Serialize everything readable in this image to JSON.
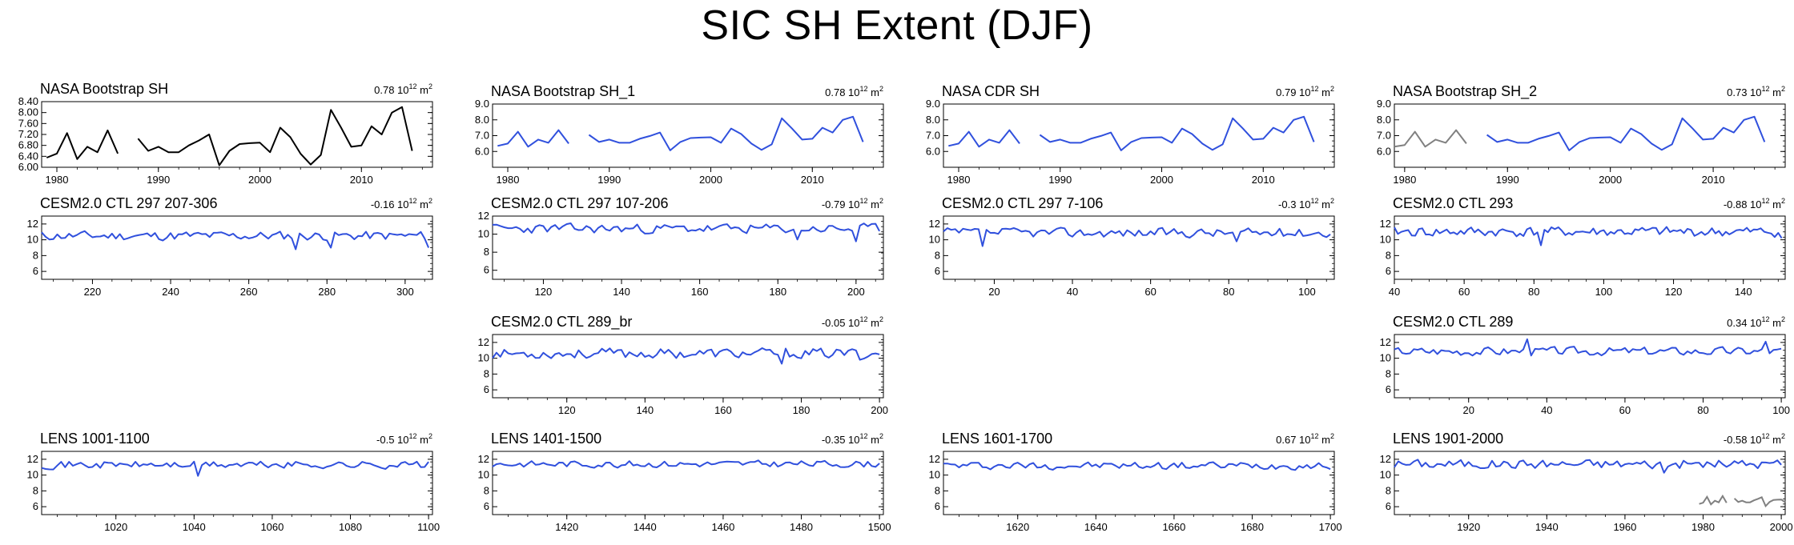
{
  "title": "SIC SH Extent (DJF)",
  "unit": {
    "base": "10",
    "exp": "12",
    "sym": "m",
    "sym_exp": "2"
  },
  "colors": {
    "obs": "#000000",
    "model": "#3050dd",
    "overlay": "#808080"
  },
  "chart_data": [
    {
      "type": "line",
      "title": "NASA Bootstrap SH",
      "std": "0.78",
      "color": "obs",
      "xlim": [
        1978.5,
        2017
      ],
      "ylim": [
        6.0,
        8.4
      ],
      "yticks": [
        "6.00",
        "6.40",
        "6.80",
        "7.20",
        "7.60",
        "8.00",
        "8.40"
      ],
      "xticks": [
        "1980",
        "1990",
        "2000",
        "2010"
      ],
      "series": [
        {
          "x0": 1979,
          "values": [
            6.35,
            6.5,
            7.25,
            6.3,
            6.75,
            6.55,
            7.35,
            6.5
          ]
        },
        {
          "x0": 1988,
          "values": [
            7.05,
            6.6,
            6.75,
            6.55,
            6.55,
            6.8,
            6.98,
            7.2,
            6.07,
            6.6,
            6.85,
            6.88,
            6.9,
            6.55,
            7.45,
            7.1,
            6.5,
            6.1,
            6.45,
            8.1,
            7.45,
            6.75,
            6.8,
            7.5,
            7.2,
            8.0,
            8.2,
            6.6
          ]
        }
      ]
    },
    {
      "type": "line",
      "title": "NASA Bootstrap SH_1",
      "std": "0.78",
      "color": "model",
      "xlim": [
        1978.5,
        2017
      ],
      "ylim": [
        5.0,
        9.0
      ],
      "yticks": [
        "6.0",
        "7.0",
        "8.0",
        "9.0"
      ],
      "xticks": [
        "1980",
        "1990",
        "2000",
        "2010"
      ],
      "series": [
        {
          "x0": 1979,
          "values": [
            6.35,
            6.5,
            7.25,
            6.3,
            6.75,
            6.55,
            7.35,
            6.5
          ]
        },
        {
          "x0": 1988,
          "values": [
            7.05,
            6.6,
            6.75,
            6.55,
            6.55,
            6.8,
            6.98,
            7.2,
            6.07,
            6.6,
            6.85,
            6.88,
            6.9,
            6.55,
            7.45,
            7.1,
            6.5,
            6.1,
            6.45,
            8.1,
            7.45,
            6.75,
            6.8,
            7.5,
            7.2,
            8.0,
            8.2,
            6.6
          ]
        }
      ]
    },
    {
      "type": "line",
      "title": "NASA CDR SH",
      "std": "0.79",
      "color": "model",
      "xlim": [
        1978.5,
        2017
      ],
      "ylim": [
        5.0,
        9.0
      ],
      "yticks": [
        "6.0",
        "7.0",
        "8.0",
        "9.0"
      ],
      "xticks": [
        "1980",
        "1990",
        "2000",
        "2010"
      ],
      "series": [
        {
          "x0": 1979,
          "values": [
            6.35,
            6.5,
            7.25,
            6.3,
            6.75,
            6.55,
            7.35,
            6.5
          ]
        },
        {
          "x0": 1988,
          "values": [
            7.05,
            6.6,
            6.75,
            6.55,
            6.55,
            6.8,
            6.98,
            7.2,
            6.07,
            6.6,
            6.85,
            6.88,
            6.9,
            6.55,
            7.45,
            7.1,
            6.5,
            6.1,
            6.45,
            8.1,
            7.45,
            6.75,
            6.8,
            7.5,
            7.2,
            8.0,
            8.2,
            6.6
          ]
        }
      ]
    },
    {
      "type": "line",
      "title": "NASA Bootstrap SH_2",
      "std": "0.73",
      "color": "model",
      "xlim": [
        1979,
        2017
      ],
      "ylim": [
        5.0,
        9.0
      ],
      "yticks": [
        "6.0",
        "7.0",
        "8.0",
        "9.0"
      ],
      "xticks": [
        "1980",
        "1990",
        "2000",
        "2010"
      ],
      "series": [
        {
          "x0": 1979,
          "values": [
            6.3,
            6.4,
            7.25,
            6.3,
            6.75,
            6.55,
            7.35,
            6.5
          ],
          "first_segment_color": "overlay"
        },
        {
          "x0": 1988,
          "values": [
            7.05,
            6.6,
            6.75,
            6.55,
            6.55,
            6.8,
            6.98,
            7.2,
            6.07,
            6.6,
            6.85,
            6.88,
            6.9,
            6.55,
            7.45,
            7.1,
            6.5,
            6.1,
            6.45,
            8.1,
            7.45,
            6.75,
            6.8,
            7.5,
            7.2,
            8.0,
            8.2,
            6.6
          ]
        }
      ]
    },
    {
      "type": "line",
      "title": "CESM2.0 CTL 297 207-306",
      "std": "-0.16",
      "color": "model",
      "xlim": [
        207,
        307
      ],
      "ylim": [
        5,
        13
      ],
      "yticks": [
        "6",
        "8",
        "10",
        "12"
      ],
      "xticks": [
        "220",
        "240",
        "260",
        "280",
        "300"
      ],
      "gen": {
        "x0": 207,
        "n": 100,
        "mean": 10.5,
        "amp": 0.55,
        "seed": 11,
        "dips": [
          [
            272,
            8.8
          ],
          [
            281,
            9.0
          ],
          [
            306,
            9.0
          ]
        ]
      }
    },
    {
      "type": "line",
      "title": "CESM2.0 CTL 297 107-206",
      "std": "-0.79",
      "color": "model",
      "xlim": [
        107,
        207
      ],
      "ylim": [
        5,
        12
      ],
      "yticks": [
        "6",
        "8",
        "10",
        "12"
      ],
      "xticks": [
        "120",
        "140",
        "160",
        "180",
        "200"
      ],
      "gen": {
        "x0": 107,
        "n": 100,
        "mean": 10.6,
        "amp": 0.5,
        "seed": 23,
        "dips": [
          [
            185,
            9.4
          ],
          [
            200,
            9.2
          ]
        ]
      }
    },
    {
      "type": "line",
      "title": "CESM2.0 CTL 297 7-106",
      "std": "-0.3",
      "color": "model",
      "xlim": [
        7,
        107
      ],
      "ylim": [
        5,
        13
      ],
      "yticks": [
        "6",
        "8",
        "10",
        "12"
      ],
      "xticks": [
        "20",
        "40",
        "60",
        "80",
        "100"
      ],
      "gen": {
        "x0": 7,
        "n": 100,
        "mean": 10.9,
        "amp": 0.55,
        "seed": 37,
        "dips": [
          [
            17,
            9.2
          ],
          [
            82,
            9.8
          ]
        ]
      }
    },
    {
      "type": "line",
      "title": "CESM2.0 CTL 293",
      "std": "-0.88",
      "color": "model",
      "xlim": [
        40,
        152
      ],
      "ylim": [
        5,
        13
      ],
      "yticks": [
        "6",
        "8",
        "10",
        "12"
      ],
      "xticks": [
        "40",
        "60",
        "80",
        "100",
        "120",
        "140"
      ],
      "gen": {
        "x0": 40,
        "n": 112,
        "mean": 11.0,
        "amp": 0.6,
        "seed": 41,
        "dips": [
          [
            82,
            9.3
          ],
          [
            151,
            10.2
          ]
        ]
      }
    },
    {
      "type": "line",
      "title": "CESM2.0 CTL 289_br",
      "std": "-0.05",
      "color": "model",
      "xlim": [
        101,
        201
      ],
      "ylim": [
        5,
        13
      ],
      "yticks": [
        "6",
        "8",
        "10",
        "12"
      ],
      "xticks": [
        "120",
        "140",
        "160",
        "180",
        "200"
      ],
      "gen": {
        "x0": 101,
        "n": 100,
        "mean": 10.6,
        "amp": 0.6,
        "seed": 53,
        "dips": [
          [
            175,
            9.3
          ],
          [
            195,
            9.8
          ],
          [
            201,
            11.8
          ]
        ]
      }
    },
    {
      "type": "line",
      "title": "CESM2.0 CTL 289",
      "std": "0.34",
      "color": "model",
      "xlim": [
        1,
        101
      ],
      "ylim": [
        5,
        13
      ],
      "yticks": [
        "6",
        "8",
        "10",
        "12"
      ],
      "xticks": [
        "20",
        "40",
        "60",
        "80",
        "100"
      ],
      "gen": {
        "x0": 1,
        "n": 100,
        "mean": 10.9,
        "amp": 0.5,
        "seed": 67,
        "dips": [
          [
            35,
            12.4
          ],
          [
            96,
            12.1
          ]
        ]
      }
    },
    {
      "type": "line",
      "title": "LENS 1001-1100",
      "std": "-0.5",
      "color": "model",
      "xlim": [
        1001,
        1101
      ],
      "ylim": [
        5,
        13
      ],
      "yticks": [
        "6",
        "8",
        "10",
        "12"
      ],
      "xticks": [
        "1020",
        "1040",
        "1060",
        "1080",
        "1100"
      ],
      "gen": {
        "x0": 1001,
        "n": 100,
        "mean": 11.3,
        "amp": 0.45,
        "seed": 71,
        "dips": [
          [
            1041,
            9.9
          ]
        ]
      }
    },
    {
      "type": "line",
      "title": "LENS 1401-1500",
      "std": "-0.35",
      "color": "model",
      "xlim": [
        1401,
        1501
      ],
      "ylim": [
        5,
        13
      ],
      "yticks": [
        "6",
        "8",
        "10",
        "12"
      ],
      "xticks": [
        "1420",
        "1440",
        "1460",
        "1480",
        "1500"
      ],
      "gen": {
        "x0": 1401,
        "n": 100,
        "mean": 11.4,
        "amp": 0.4,
        "seed": 83,
        "dips": []
      }
    },
    {
      "type": "line",
      "title": "LENS 1601-1700",
      "std": "0.67",
      "color": "model",
      "xlim": [
        1601,
        1701
      ],
      "ylim": [
        5,
        13
      ],
      "yticks": [
        "6",
        "8",
        "10",
        "12"
      ],
      "xticks": [
        "1620",
        "1640",
        "1660",
        "1680",
        "1700"
      ],
      "gen": {
        "x0": 1601,
        "n": 100,
        "mean": 11.2,
        "amp": 0.45,
        "seed": 97,
        "dips": []
      }
    },
    {
      "type": "line",
      "title": "LENS 1901-2000",
      "std": "-0.58",
      "color": "model",
      "xlim": [
        1901,
        2001
      ],
      "ylim": [
        5,
        13
      ],
      "yticks": [
        "6",
        "8",
        "10",
        "12"
      ],
      "xticks": [
        "1920",
        "1940",
        "1960",
        "1980",
        "2000"
      ],
      "gen": {
        "x0": 1901,
        "n": 100,
        "mean": 11.4,
        "amp": 0.55,
        "seed": 101,
        "dips": [
          [
            1970,
            10.3
          ]
        ]
      },
      "overlay": [
        {
          "x0": 1979,
          "values": [
            6.35,
            6.5,
            7.25,
            6.3,
            6.75,
            6.55,
            7.35,
            6.5
          ]
        },
        {
          "x0": 1988,
          "values": [
            7.05,
            6.6,
            6.75,
            6.55,
            6.55,
            6.8,
            6.98,
            7.2,
            6.07,
            6.6,
            6.85,
            6.88,
            6.9,
            6.55
          ]
        }
      ]
    }
  ]
}
